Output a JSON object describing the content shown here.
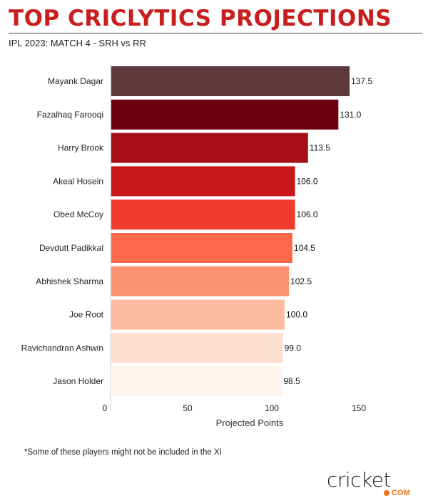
{
  "header": {
    "title": "TOP CRICLYTICS PROJECTIONS",
    "subtitle": "IPL 2023: MATCH 4 - SRH vs RR"
  },
  "chart_data": {
    "type": "bar",
    "orientation": "horizontal",
    "categories": [
      "Mayank Dagar",
      "Fazalhaq Farooqi",
      "Harry Brook",
      "Akeal Hosein",
      "Obed McCoy",
      "Devdutt Padikkal",
      "Abhishek Sharma",
      "Joe Root",
      "Ravichandran Ashwin",
      "Jason Holder"
    ],
    "values": [
      137.5,
      131.0,
      113.5,
      106.0,
      106.0,
      104.5,
      102.5,
      100.0,
      99.0,
      98.5
    ],
    "labels": [
      "137.5",
      "131.0",
      "113.5",
      "106.0",
      "106.0",
      "104.5",
      "102.5",
      "100.0",
      "99.0",
      "98.5"
    ],
    "colors": [
      "#5e3a3c",
      "#6b0010",
      "#a50f15",
      "#cb181d",
      "#ef3b2c",
      "#fb6a4a",
      "#fc9272",
      "#fcbba1",
      "#fee0d2",
      "#fff5ee"
    ],
    "xlabel": "Projected Points",
    "xticks": [
      "0",
      "50",
      "100",
      "150"
    ],
    "xlim": [
      0,
      150
    ],
    "grid": false
  },
  "footer": {
    "note": "*Some of these players might not be included in the XI",
    "logo_word": "cricket",
    "logo_com": "COM"
  }
}
